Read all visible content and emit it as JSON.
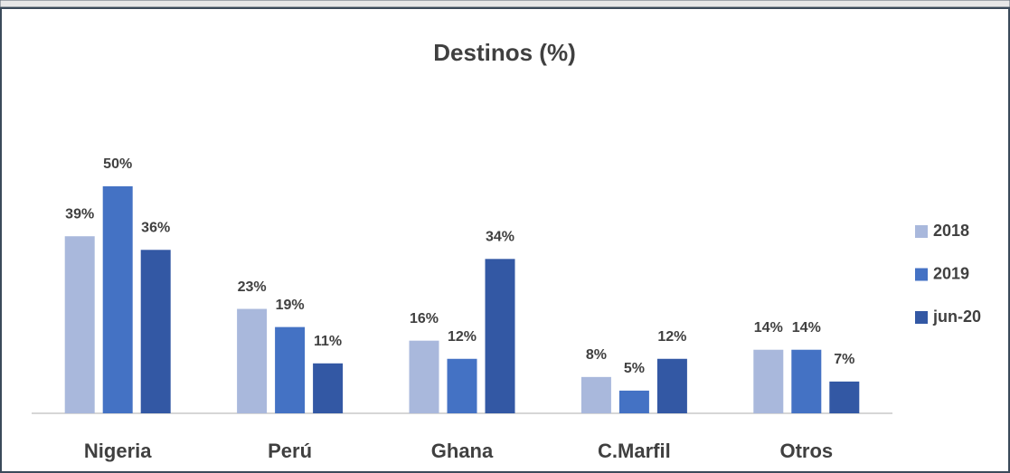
{
  "chart_data": {
    "type": "bar",
    "title": "Destinos  (%)",
    "categories": [
      "Nigeria",
      "Perú",
      "Ghana",
      "C.Marfil",
      "Otros"
    ],
    "series": [
      {
        "name": "2018",
        "color": "#a9b8dc",
        "values": [
          39,
          23,
          16,
          8,
          14
        ],
        "value_labels": [
          "39%",
          "23%",
          "16%",
          "8%",
          "14%"
        ]
      },
      {
        "name": "2019",
        "color": "#4472c4",
        "values": [
          50,
          19,
          12,
          5,
          14
        ],
        "value_labels": [
          "50%",
          "19%",
          "12%",
          "5%",
          "14%"
        ]
      },
      {
        "name": "jun-20",
        "color": "#3358a4",
        "values": [
          36,
          11,
          34,
          12,
          7
        ],
        "value_labels": [
          "36%",
          "11%",
          "34%",
          "12%",
          "7%"
        ]
      }
    ],
    "legend": "right"
  }
}
